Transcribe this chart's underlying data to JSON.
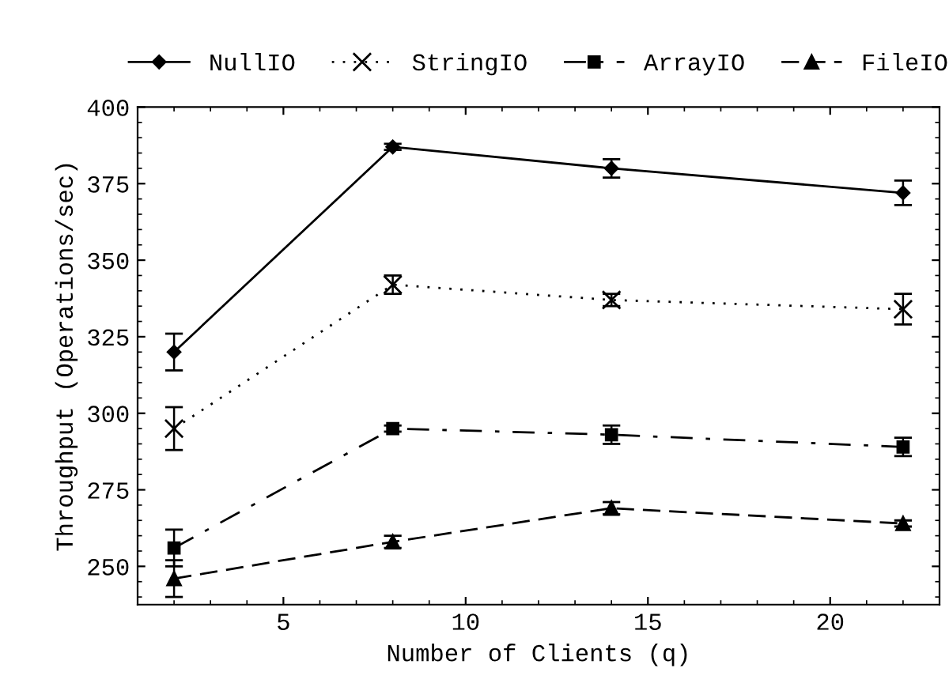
{
  "chart_data": {
    "type": "line",
    "xlabel": "Number of Clients (q)",
    "ylabel": "Throughput (Operations/sec)",
    "x": [
      2,
      8,
      14,
      22
    ],
    "xlim": [
      1,
      23
    ],
    "xticks": [
      5,
      10,
      15,
      20
    ],
    "ylim": [
      237.5,
      400
    ],
    "yticks": [
      250,
      275,
      300,
      325,
      350,
      375,
      400
    ],
    "grid": false,
    "legend": "top",
    "series": [
      {
        "name": "NullIO",
        "color": "#000000",
        "marker": "diamond",
        "line_style": "solid",
        "values": [
          320,
          387,
          380,
          372
        ],
        "errors": [
          6,
          1,
          3,
          4
        ]
      },
      {
        "name": "StringIO",
        "color": "#000000",
        "marker": "cross",
        "line_style": "dotted",
        "values": [
          295,
          342,
          337,
          334
        ],
        "errors": [
          7,
          3,
          2,
          5
        ]
      },
      {
        "name": "ArrayIO",
        "color": "#000000",
        "marker": "square",
        "line_style": "dashdot",
        "values": [
          256,
          295,
          293,
          289
        ],
        "errors": [
          6,
          1,
          3,
          3
        ]
      },
      {
        "name": "FileIO",
        "color": "#000000",
        "marker": "triangle",
        "line_style": "dashed",
        "values": [
          246,
          258,
          269,
          264
        ],
        "errors": [
          6,
          2,
          2,
          1
        ]
      }
    ]
  }
}
